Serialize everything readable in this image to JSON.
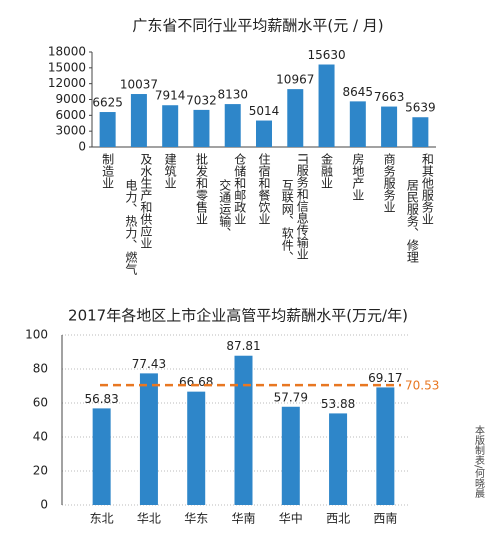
{
  "chart_data": [
    {
      "type": "bar",
      "title": "广东省不同行业平均薪酬水平(元 / 月)",
      "categories": [
        [
          "制造业"
        ],
        [
          "电力、热力、燃气",
          "及水生产和供应业"
        ],
        [
          "建筑业"
        ],
        [
          "批发和零售业"
        ],
        [
          "交通运输、",
          "仓储和邮政业"
        ],
        [
          "住宿和餐饮业"
        ],
        [
          "互联网、软件、",
          "IT服务和信息传输业"
        ],
        [
          "金融业"
        ],
        [
          "房地产业"
        ],
        [
          "商务服务业"
        ],
        [
          "居民服务、修理",
          "和其他服务业"
        ]
      ],
      "values": [
        6625,
        10037,
        7914,
        7032,
        8130,
        5014,
        10967,
        15630,
        8645,
        7663,
        5639
      ],
      "color": "#2e86c9",
      "ylim": [
        0,
        18000
      ],
      "yticks": [
        0,
        3000,
        6000,
        9000,
        12000,
        15000,
        18000
      ],
      "grid": false
    },
    {
      "type": "bar",
      "title": "2017年各地区上市企业高管平均薪酬水平(万元/年)",
      "categories": [
        "东北",
        "华北",
        "华东",
        "华南",
        "华中",
        "西北",
        "西南"
      ],
      "values": [
        56.83,
        77.43,
        66.68,
        87.81,
        57.79,
        53.88,
        69.17
      ],
      "color": "#2e86c9",
      "ylim": [
        0,
        100
      ],
      "yticks": [
        0,
        20,
        40,
        60,
        80,
        100
      ],
      "grid": true,
      "reference_line": {
        "value": 70.53,
        "color": "#e87722"
      }
    }
  ],
  "credit": "本版制表/何晓晨"
}
